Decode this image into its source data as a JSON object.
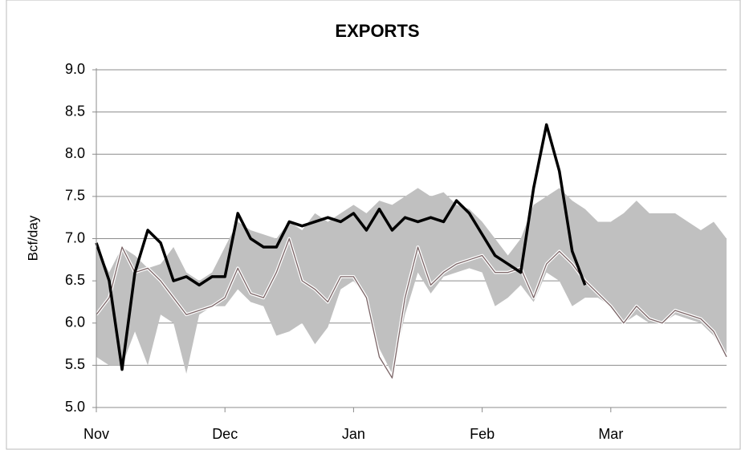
{
  "chart_data": {
    "type": "line",
    "title": "EXPORTS",
    "y_label": "Bcf/day",
    "categories": [
      "Nov",
      null,
      null,
      null,
      null,
      null,
      null,
      null,
      null,
      null,
      "Dec",
      null,
      null,
      null,
      null,
      null,
      null,
      null,
      null,
      null,
      "Jan",
      null,
      null,
      null,
      null,
      null,
      null,
      null,
      null,
      null,
      "Feb",
      null,
      null,
      null,
      null,
      null,
      null,
      null,
      null,
      null,
      "Mar",
      null,
      null,
      null,
      null,
      null,
      null,
      null,
      null,
      null
    ],
    "range": {
      "color": "#c0c0c0",
      "upper": [
        6.9,
        6.6,
        6.9,
        6.8,
        6.65,
        6.7,
        6.9,
        6.6,
        6.5,
        6.6,
        6.9,
        7.2,
        7.1,
        7.05,
        7.0,
        7.2,
        7.1,
        7.3,
        7.2,
        7.3,
        7.4,
        7.3,
        7.45,
        7.4,
        7.5,
        7.6,
        7.5,
        7.55,
        7.4,
        7.35,
        7.2,
        7.0,
        6.8,
        7.0,
        7.4,
        7.5,
        7.6,
        7.45,
        7.35,
        7.2,
        7.2,
        7.3,
        7.45,
        7.3,
        7.3,
        7.3,
        7.2,
        7.1,
        7.2,
        7.0
      ],
      "lower": [
        5.6,
        5.5,
        5.5,
        5.9,
        5.5,
        6.1,
        6.0,
        5.4,
        6.1,
        6.2,
        6.2,
        6.4,
        6.25,
        6.2,
        5.85,
        5.9,
        6.0,
        5.75,
        5.95,
        6.4,
        6.5,
        6.3,
        5.7,
        5.4,
        6.1,
        6.6,
        6.35,
        6.55,
        6.6,
        6.65,
        6.6,
        6.2,
        6.3,
        6.45,
        6.25,
        6.6,
        6.5,
        6.2,
        6.3,
        6.3,
        6.2,
        6.0,
        6.1,
        6.0,
        6.0,
        6.1,
        6.05,
        6.0,
        5.85,
        5.6
      ]
    },
    "series": [
      {
        "color": "#7a6466",
        "width": 1.3,
        "values": [
          6.1,
          6.3,
          6.9,
          6.6,
          6.65,
          6.5,
          6.3,
          6.1,
          6.15,
          6.2,
          6.3,
          6.65,
          6.35,
          6.3,
          6.6,
          7.0,
          6.5,
          6.4,
          6.25,
          6.55,
          6.55,
          6.3,
          5.6,
          5.35,
          6.3,
          6.9,
          6.45,
          6.6,
          6.7,
          6.75,
          6.8,
          6.6,
          6.6,
          6.65,
          6.3,
          6.7,
          6.85,
          6.7,
          6.5,
          6.35,
          6.2,
          6.0,
          6.2,
          6.05,
          6.0,
          6.15,
          6.1,
          6.05,
          5.9,
          5.6
        ]
      },
      {
        "color": "#000000",
        "width": 3.5,
        "values": [
          6.95,
          6.5,
          5.45,
          6.6,
          7.1,
          6.95,
          6.5,
          6.55,
          6.45,
          6.55,
          6.55,
          7.3,
          7.0,
          6.9,
          6.9,
          7.2,
          7.15,
          7.2,
          7.25,
          7.2,
          7.3,
          7.1,
          7.35,
          7.1,
          7.25,
          7.2,
          7.25,
          7.2,
          7.45,
          7.3,
          7.05,
          6.8,
          6.7,
          6.6,
          7.6,
          8.35,
          7.8,
          6.85,
          6.45,
          null,
          null,
          null,
          null,
          null,
          null,
          null,
          null,
          null,
          null,
          null
        ]
      }
    ],
    "ylim": [
      5,
      9
    ],
    "yticks": [
      {
        "value": 5,
        "label": "5.0"
      },
      5.5,
      {
        "value": 6,
        "label": "6.0"
      },
      6.5,
      {
        "value": 7,
        "label": "7.0"
      },
      7.5,
      {
        "value": 8,
        "label": "8.0"
      },
      8.5,
      {
        "value": 9,
        "label": "9.0"
      }
    ],
    "grid": true
  }
}
